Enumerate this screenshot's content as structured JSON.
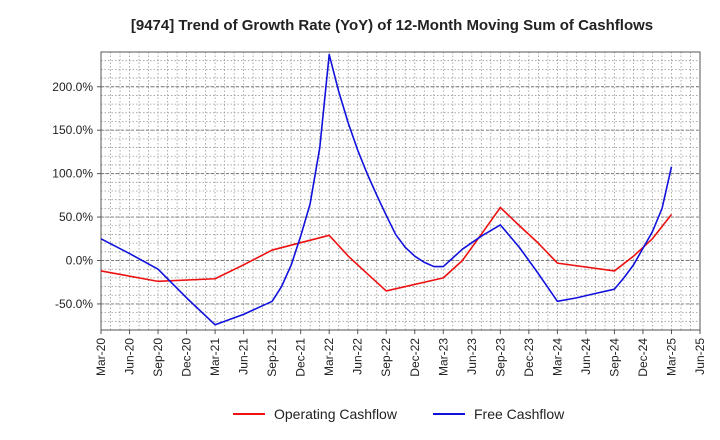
{
  "chart_data": {
    "type": "line",
    "title": "[9474]  Trend of Growth Rate (YoY) of 12-Month Moving Sum of Cashflows",
    "xlabel": "",
    "ylabel": "",
    "ylim": [
      -80,
      240
    ],
    "yticks": [
      -50,
      0,
      50,
      100,
      150,
      200
    ],
    "ytick_labels": [
      "-50.0%",
      "0.0%",
      "50.0%",
      "100.0%",
      "150.0%",
      "200.0%"
    ],
    "x_range": [
      0,
      21
    ],
    "x_ticks": [
      0,
      1,
      2,
      3,
      4,
      5,
      6,
      7,
      8,
      9,
      10,
      11,
      12,
      13,
      14,
      15,
      16,
      17,
      18,
      19,
      20,
      21
    ],
    "x_tick_labels": [
      "Mar-20",
      "Jun-20",
      "Sep-20",
      "Dec-20",
      "Mar-21",
      "Jun-21",
      "Sep-21",
      "Dec-21",
      "Mar-22",
      "Jun-22",
      "Sep-22",
      "Dec-22",
      "Mar-23",
      "Jun-23",
      "Sep-23",
      "Dec-23",
      "Mar-24",
      "Jun-24",
      "Sep-24",
      "Dec-24",
      "Mar-25",
      "Jun-25"
    ],
    "grid": true,
    "legend_position": "bottom-center",
    "series": [
      {
        "name": "Operating Cashflow",
        "color": "#ee1111",
        "points": [
          [
            0,
            -12
          ],
          [
            2,
            -24
          ],
          [
            4,
            -21
          ],
          [
            5,
            -5
          ],
          [
            6,
            12
          ],
          [
            8,
            29
          ],
          [
            8.67,
            5
          ],
          [
            9.33,
            -15
          ],
          [
            10,
            -35
          ],
          [
            12,
            -20
          ],
          [
            12.67,
            0
          ],
          [
            13.33,
            30
          ],
          [
            14,
            61
          ],
          [
            14.67,
            40
          ],
          [
            15.33,
            20
          ],
          [
            16,
            -3
          ],
          [
            18,
            -12
          ],
          [
            18.67,
            5
          ],
          [
            19.33,
            25
          ],
          [
            20,
            53
          ]
        ]
      },
      {
        "name": "Free Cashflow",
        "color": "#1111dd",
        "points": [
          [
            0,
            25
          ],
          [
            1,
            8
          ],
          [
            2,
            -10
          ],
          [
            3,
            -43
          ],
          [
            4,
            -74
          ],
          [
            5,
            -62
          ],
          [
            6,
            -47
          ],
          [
            6.33,
            -30
          ],
          [
            6.67,
            -5
          ],
          [
            7,
            28
          ],
          [
            7.33,
            65
          ],
          [
            7.67,
            130
          ],
          [
            8,
            237
          ],
          [
            8.33,
            195
          ],
          [
            8.67,
            158
          ],
          [
            9,
            127
          ],
          [
            9.33,
            100
          ],
          [
            9.67,
            75
          ],
          [
            10,
            52
          ],
          [
            10.33,
            30
          ],
          [
            10.67,
            15
          ],
          [
            11,
            5
          ],
          [
            11.33,
            -2
          ],
          [
            11.67,
            -7
          ],
          [
            12,
            -7
          ],
          [
            12.67,
            13
          ],
          [
            13.33,
            28
          ],
          [
            14,
            41
          ],
          [
            14.67,
            15
          ],
          [
            15.33,
            -15
          ],
          [
            16,
            -47
          ],
          [
            16.67,
            -43
          ],
          [
            17.33,
            -38
          ],
          [
            18,
            -33
          ],
          [
            18.33,
            -20
          ],
          [
            18.67,
            -5
          ],
          [
            19,
            14
          ],
          [
            19.33,
            33
          ],
          [
            19.67,
            60
          ],
          [
            20,
            108
          ]
        ]
      }
    ]
  }
}
